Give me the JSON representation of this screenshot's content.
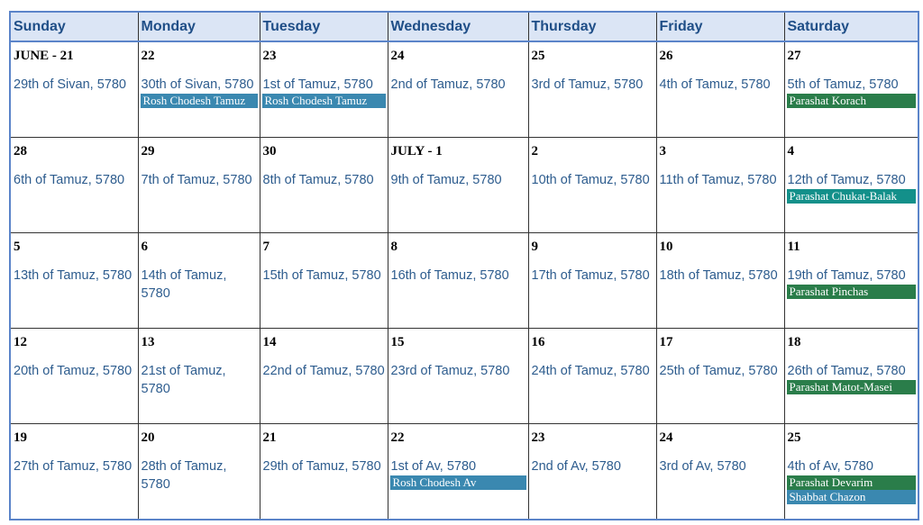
{
  "colors": {
    "header_bg": "#dbe5f5",
    "header_text": "#1f4e87",
    "hebrew_text": "#2d5c8e",
    "rosh_chodesh": "#3a88b0",
    "parasha": "#2a7d4a",
    "parasha_alt": "#13908a",
    "shabbat_special": "#3a88b0",
    "border_accent": "#5b84c9"
  },
  "weekdays": [
    "Sunday",
    "Monday",
    "Tuesday",
    "Wednesday",
    "Thursday",
    "Friday",
    "Saturday"
  ],
  "weeks": [
    [
      {
        "day": "JUNE - 21",
        "hebrew": "29th of Sivan, 5780",
        "events": []
      },
      {
        "day": "22",
        "hebrew": "30th of Sivan, 5780",
        "events": [
          {
            "name": "Rosh Chodesh Tamuz",
            "color": "#3a88b0"
          }
        ]
      },
      {
        "day": "23",
        "hebrew": "1st of Tamuz, 5780",
        "events": [
          {
            "name": "Rosh Chodesh Tamuz",
            "color": "#3a88b0"
          }
        ]
      },
      {
        "day": "24",
        "hebrew": "2nd of Tamuz, 5780",
        "events": []
      },
      {
        "day": "25",
        "hebrew": "3rd of Tamuz, 5780",
        "events": []
      },
      {
        "day": "26",
        "hebrew": "4th of Tamuz, 5780",
        "events": []
      },
      {
        "day": "27",
        "hebrew": "5th of Tamuz, 5780",
        "events": [
          {
            "name": "Parashat Korach",
            "color": "#2a7d4a"
          }
        ]
      }
    ],
    [
      {
        "day": "28",
        "hebrew": "6th of Tamuz, 5780",
        "events": []
      },
      {
        "day": "29",
        "hebrew": "7th of Tamuz, 5780",
        "events": []
      },
      {
        "day": "30",
        "hebrew": "8th of Tamuz, 5780",
        "events": []
      },
      {
        "day": "JULY - 1",
        "hebrew": "9th of Tamuz, 5780",
        "events": []
      },
      {
        "day": "2",
        "hebrew": "10th of Tamuz, 5780",
        "events": []
      },
      {
        "day": "3",
        "hebrew": "11th of Tamuz, 5780",
        "events": []
      },
      {
        "day": "4",
        "hebrew": "12th of Tamuz, 5780",
        "events": [
          {
            "name": "Parashat Chukat-Balak",
            "color": "#13908a"
          }
        ]
      }
    ],
    [
      {
        "day": "5",
        "hebrew": "13th of Tamuz, 5780",
        "events": []
      },
      {
        "day": "6",
        "hebrew": "14th of Tamuz, 5780",
        "events": []
      },
      {
        "day": "7",
        "hebrew": "15th of Tamuz, 5780",
        "events": []
      },
      {
        "day": "8",
        "hebrew": "16th of Tamuz, 5780",
        "events": []
      },
      {
        "day": "9",
        "hebrew": "17th of Tamuz, 5780",
        "events": []
      },
      {
        "day": "10",
        "hebrew": "18th of Tamuz, 5780",
        "events": []
      },
      {
        "day": "11",
        "hebrew": "19th of Tamuz, 5780",
        "events": [
          {
            "name": "Parashat Pinchas",
            "color": "#2a7d4a"
          }
        ]
      }
    ],
    [
      {
        "day": "12",
        "hebrew": "20th of Tamuz, 5780",
        "events": []
      },
      {
        "day": "13",
        "hebrew": "21st of Tamuz, 5780",
        "events": []
      },
      {
        "day": "14",
        "hebrew": "22nd of Tamuz, 5780",
        "events": []
      },
      {
        "day": "15",
        "hebrew": "23rd of Tamuz, 5780",
        "events": []
      },
      {
        "day": "16",
        "hebrew": "24th of Tamuz, 5780",
        "events": []
      },
      {
        "day": "17",
        "hebrew": "25th of Tamuz, 5780",
        "events": []
      },
      {
        "day": "18",
        "hebrew": "26th of Tamuz, 5780",
        "events": [
          {
            "name": "Parashat Matot-Masei",
            "color": "#2a7d4a"
          }
        ]
      }
    ],
    [
      {
        "day": "19",
        "hebrew": "27th of Tamuz, 5780",
        "events": []
      },
      {
        "day": "20",
        "hebrew": "28th of Tamuz, 5780",
        "events": []
      },
      {
        "day": "21",
        "hebrew": "29th of Tamuz, 5780",
        "events": []
      },
      {
        "day": "22",
        "hebrew": "1st of Av, 5780",
        "events": [
          {
            "name": "Rosh Chodesh Av",
            "color": "#3a88b0"
          }
        ]
      },
      {
        "day": "23",
        "hebrew": "2nd of Av, 5780",
        "events": []
      },
      {
        "day": "24",
        "hebrew": "3rd of Av, 5780",
        "events": []
      },
      {
        "day": "25",
        "hebrew": "4th of Av, 5780",
        "events": [
          {
            "name": "Parashat Devarim",
            "color": "#2a7d4a"
          },
          {
            "name": "Shabbat Chazon",
            "color": "#3a88b0"
          }
        ]
      }
    ]
  ]
}
